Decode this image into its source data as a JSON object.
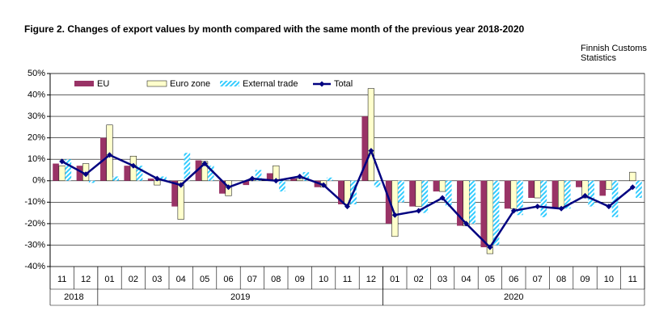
{
  "chart_data": {
    "type": "bar",
    "title": "Figure  2. Changes of export values by month compared with the same month of the previous year 2018-2020",
    "note": [
      "Finnish Customs",
      "Statistics"
    ],
    "categories": [
      "11",
      "12",
      "01",
      "02",
      "03",
      "04",
      "05",
      "06",
      "07",
      "08",
      "09",
      "10",
      "11",
      "12",
      "01",
      "02",
      "03",
      "04",
      "05",
      "06",
      "07",
      "08",
      "09",
      "10",
      "11"
    ],
    "year_groups": [
      {
        "label": "2018",
        "count": 2
      },
      {
        "label": "2019",
        "count": 12
      },
      {
        "label": "2020",
        "count": 11
      }
    ],
    "series": [
      {
        "name": "EU",
        "type": "bar",
        "color": "#993366",
        "values": [
          8,
          7,
          20,
          7,
          1,
          -12,
          9.5,
          -6,
          -2,
          3.5,
          1,
          -3,
          -11,
          30,
          -20,
          -12,
          -5,
          -21,
          -31,
          -13,
          -8,
          -13,
          -3,
          -7,
          0
        ]
      },
      {
        "name": "Euro zone",
        "type": "bar",
        "color": "#ffffcc",
        "values": [
          7,
          8,
          26,
          11.5,
          -2,
          -18,
          9,
          -7,
          1,
          7,
          1,
          -3,
          -11,
          43,
          -26,
          -12,
          -5,
          -21,
          -34,
          -13,
          -8,
          -13,
          -8,
          -4,
          4
        ]
      },
      {
        "name": "External trade",
        "type": "hatched-bar",
        "color": "#33ccff",
        "values": [
          10,
          -1,
          2,
          7,
          2,
          13,
          7,
          0,
          5,
          -5,
          4,
          1.5,
          -11,
          -3,
          -10,
          -15,
          -12,
          -20,
          -30,
          -16,
          -17,
          -13,
          -12,
          -17,
          -8
        ]
      },
      {
        "name": "Total",
        "type": "line",
        "color": "#000080",
        "values": [
          9,
          3,
          12,
          7,
          1,
          -2,
          8,
          -3,
          1,
          0,
          2,
          -2,
          -12,
          14,
          -16,
          -14,
          -8,
          -20,
          -31,
          -14,
          -12,
          -13,
          -7,
          -12,
          -3
        ]
      }
    ],
    "ylim": [
      -40,
      50
    ],
    "yticks": [
      {
        "value": -40,
        "label": "-40%"
      },
      {
        "value": -30,
        "label": "-30%"
      },
      {
        "value": -20,
        "label": "-20%"
      },
      {
        "value": -10,
        "label": "-10%"
      },
      {
        "value": 0,
        "label": "0%"
      },
      {
        "value": 10,
        "label": "10%"
      },
      {
        "value": 20,
        "label": "20%"
      },
      {
        "value": 30,
        "label": "30%"
      },
      {
        "value": 40,
        "label": "40%"
      },
      {
        "value": 50,
        "label": "50%"
      }
    ],
    "grid": true,
    "legend": "top-left"
  }
}
